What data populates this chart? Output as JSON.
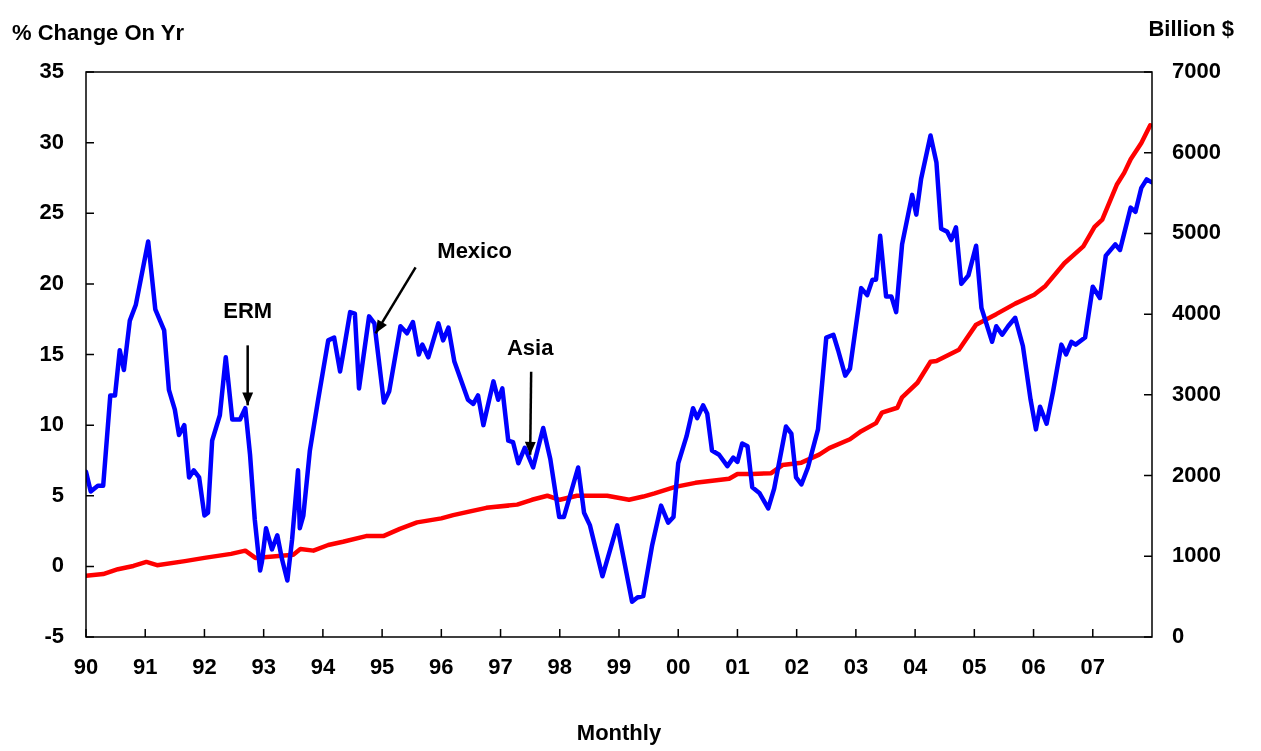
{
  "chart_data": {
    "type": "line",
    "xlabel": "Monthly",
    "ylabel": "% Change On Yr",
    "y2label": "Billion $",
    "marker": "none",
    "line_style": "solid",
    "legend": false,
    "xlim": [
      1990,
      2008
    ],
    "xticks": [
      {
        "value": 1990,
        "label": "90"
      },
      {
        "value": 1991,
        "label": "91"
      },
      {
        "value": 1992,
        "label": "92"
      },
      {
        "value": 1993,
        "label": "93"
      },
      {
        "value": 1994,
        "label": "94"
      },
      {
        "value": 1995,
        "label": "95"
      },
      {
        "value": 1996,
        "label": "96"
      },
      {
        "value": 1997,
        "label": "97"
      },
      {
        "value": 1998,
        "label": "98"
      },
      {
        "value": 1999,
        "label": "99"
      },
      {
        "value": 2000,
        "label": "00"
      },
      {
        "value": 2001,
        "label": "01"
      },
      {
        "value": 2002,
        "label": "02"
      },
      {
        "value": 2003,
        "label": "03"
      },
      {
        "value": 2004,
        "label": "04"
      },
      {
        "value": 2005,
        "label": "05"
      },
      {
        "value": 2006,
        "label": "06"
      },
      {
        "value": 2007,
        "label": "07"
      }
    ],
    "ylim": [
      -5,
      35
    ],
    "yticks": [
      -5,
      0,
      5,
      10,
      15,
      20,
      25,
      30,
      35
    ],
    "y2lim": [
      0,
      7000
    ],
    "y2ticks": [
      0,
      1000,
      2000,
      3000,
      4000,
      5000,
      6000,
      7000
    ],
    "series": [
      {
        "color": "#0000ff",
        "x": [
          1990.0,
          1990.08,
          1990.2,
          1990.29,
          1990.41,
          1990.49,
          1990.57,
          1990.64,
          1990.74,
          1990.84,
          1991.05,
          1991.17,
          1991.32,
          1991.4,
          1991.5,
          1991.57,
          1991.66,
          1991.74,
          1991.82,
          1991.91,
          1992.0,
          1992.06,
          1992.13,
          1992.26,
          1992.36,
          1992.47,
          1992.6,
          1992.69,
          1992.77,
          1992.85,
          1992.94,
          1992.97,
          1993.04,
          1993.14,
          1993.23,
          1993.31,
          1993.4,
          1993.48,
          1993.58,
          1993.61,
          1993.67,
          1993.78,
          1993.92,
          1994.09,
          1994.19,
          1994.29,
          1994.34,
          1994.46,
          1994.54,
          1994.61,
          1994.78,
          1994.87,
          1995.03,
          1995.12,
          1995.31,
          1995.42,
          1995.52,
          1995.62,
          1995.68,
          1995.78,
          1995.95,
          1996.03,
          1996.12,
          1996.22,
          1996.45,
          1996.54,
          1996.62,
          1996.71,
          1996.88,
          1996.96,
          1997.03,
          1997.13,
          1997.21,
          1997.3,
          1997.41,
          1997.55,
          1997.72,
          1997.84,
          1997.99,
          1998.07,
          1998.31,
          1998.41,
          1998.51,
          1998.72,
          1998.97,
          1999.22,
          1999.31,
          1999.41,
          1999.56,
          1999.71,
          1999.83,
          1999.92,
          2000.0,
          2000.14,
          2000.25,
          2000.32,
          2000.42,
          2000.49,
          2000.57,
          2000.69,
          2000.83,
          2000.93,
          2001.0,
          2001.08,
          2001.17,
          2001.25,
          2001.37,
          2001.52,
          2001.62,
          2001.82,
          2001.91,
          2001.99,
          2002.08,
          2002.19,
          2002.36,
          2002.5,
          2002.62,
          2002.7,
          2002.82,
          2002.9,
          2003.09,
          2003.19,
          2003.28,
          2003.34,
          2003.41,
          2003.51,
          2003.6,
          2003.68,
          2003.78,
          2003.95,
          2004.02,
          2004.1,
          2004.26,
          2004.36,
          2004.44,
          2004.54,
          2004.61,
          2004.69,
          2004.78,
          2004.9,
          2005.03,
          2005.12,
          2005.3,
          2005.37,
          2005.47,
          2005.57,
          2005.69,
          2005.82,
          2005.95,
          2006.04,
          2006.11,
          2006.22,
          2006.33,
          2006.47,
          2006.55,
          2006.64,
          2006.71,
          2006.87,
          2007.0,
          2007.12,
          2007.22,
          2007.38,
          2007.46,
          2007.64,
          2007.72,
          2007.82,
          2007.91,
          2007.99
        ],
        "values": [
          6.7,
          5.3,
          5.7,
          5.7,
          12.1,
          12.1,
          15.3,
          13.9,
          17.4,
          18.5,
          23.0,
          18.2,
          16.7,
          12.5,
          11.1,
          9.3,
          10.0,
          6.3,
          6.8,
          6.3,
          3.6,
          3.8,
          8.9,
          10.7,
          14.8,
          10.4,
          10.4,
          11.2,
          7.9,
          3.3,
          -0.3,
          0.3,
          2.7,
          1.2,
          2.2,
          0.5,
          -1.0,
          1.9,
          6.8,
          2.7,
          3.6,
          8.2,
          11.8,
          16.0,
          16.2,
          13.8,
          15.0,
          18.0,
          17.9,
          12.6,
          17.7,
          17.2,
          11.6,
          12.4,
          17.0,
          16.5,
          17.3,
          15.0,
          15.7,
          14.8,
          17.2,
          16.0,
          16.9,
          14.5,
          11.8,
          11.5,
          12.1,
          10.0,
          13.1,
          11.8,
          12.6,
          8.9,
          8.8,
          7.3,
          8.4,
          7.0,
          9.8,
          7.6,
          3.5,
          3.5,
          7.0,
          3.8,
          2.9,
          -0.7,
          2.9,
          -2.5,
          -2.2,
          -2.1,
          1.5,
          4.3,
          3.1,
          3.5,
          7.3,
          9.2,
          11.2,
          10.5,
          11.4,
          10.8,
          8.2,
          7.9,
          7.1,
          7.7,
          7.4,
          8.7,
          8.5,
          5.6,
          5.2,
          4.1,
          5.5,
          9.9,
          9.4,
          6.3,
          5.8,
          7.0,
          9.7,
          16.2,
          16.4,
          15.3,
          13.5,
          14.0,
          19.7,
          19.2,
          20.3,
          20.3,
          23.4,
          19.1,
          19.1,
          18.0,
          22.8,
          26.3,
          24.9,
          27.4,
          30.5,
          28.6,
          23.9,
          23.7,
          23.1,
          24.0,
          20.0,
          20.6,
          22.7,
          18.3,
          15.9,
          17.0,
          16.4,
          17.0,
          17.6,
          15.6,
          11.8,
          9.7,
          11.3,
          10.1,
          12.4,
          15.7,
          15.0,
          15.9,
          15.7,
          16.2,
          19.8,
          19.0,
          22.0,
          22.8,
          22.4,
          25.4,
          25.1,
          26.8,
          27.4,
          27.2
        ]
      },
      {
        "color": "#ff0000",
        "axis": "y2",
        "x": [
          1990.0,
          1990.29,
          1990.54,
          1990.8,
          1991.02,
          1991.2,
          1991.67,
          1992.0,
          1992.45,
          1992.69,
          1992.86,
          1993.5,
          1993.62,
          1993.84,
          1994.09,
          1994.34,
          1994.73,
          1995.02,
          1995.3,
          1995.59,
          1996.0,
          1996.2,
          1996.76,
          1997.28,
          1997.53,
          1997.79,
          1998.0,
          1998.29,
          1998.8,
          1999.17,
          1999.41,
          1999.6,
          1999.95,
          2000.29,
          2000.86,
          2001.0,
          2001.25,
          2001.57,
          2001.76,
          2002.08,
          2002.38,
          2002.55,
          2002.9,
          2003.09,
          2003.34,
          2003.44,
          2003.7,
          2003.78,
          2004.04,
          2004.26,
          2004.36,
          2004.74,
          2005.03,
          2005.37,
          2005.69,
          2006.01,
          2006.2,
          2006.52,
          2006.84,
          2007.03,
          2007.16,
          2007.41,
          2007.53,
          2007.64,
          2007.82,
          2007.97
        ],
        "values": [
          760,
          780,
          840,
          880,
          930,
          890,
          940,
          980,
          1030,
          1070,
          980,
          1020,
          1090,
          1070,
          1140,
          1180,
          1250,
          1250,
          1340,
          1420,
          1470,
          1510,
          1600,
          1640,
          1700,
          1750,
          1700,
          1750,
          1750,
          1700,
          1740,
          1780,
          1860,
          1910,
          1960,
          2020,
          2020,
          2030,
          2130,
          2160,
          2260,
          2340,
          2450,
          2550,
          2650,
          2780,
          2840,
          2970,
          3150,
          3410,
          3420,
          3560,
          3870,
          4000,
          4130,
          4240,
          4350,
          4630,
          4840,
          5080,
          5170,
          5610,
          5750,
          5920,
          6120,
          6340
        ]
      }
    ],
    "annotations": [
      {
        "text": "ERM",
        "x": 1992.73,
        "y": 11.4
      },
      {
        "text": "Mexico",
        "x": 1994.89,
        "y": 16.5
      },
      {
        "text": "Asia",
        "x": 1997.5,
        "y": 7.9
      }
    ]
  }
}
